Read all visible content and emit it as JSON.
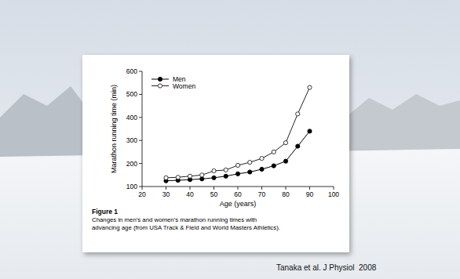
{
  "chart_data": {
    "type": "line",
    "x_label": "Age (years)",
    "y_label": "Marathon running time (min)",
    "x": [
      30,
      35,
      40,
      45,
      50,
      55,
      60,
      65,
      70,
      75,
      80,
      85,
      90
    ],
    "series": [
      {
        "name": "Men",
        "color": "#000000",
        "marker": "filled-circle",
        "line_style": "solid",
        "values": [
          125,
          127,
          130,
          133,
          138,
          145,
          155,
          163,
          175,
          190,
          210,
          275,
          340
        ]
      },
      {
        "name": "Women",
        "color": "#222222",
        "marker": "open-circle",
        "line_style": "solid",
        "values": [
          138,
          140,
          145,
          150,
          168,
          172,
          192,
          205,
          222,
          250,
          290,
          415,
          530
        ]
      }
    ],
    "xlim": [
      20,
      100
    ],
    "xticks": [
      20,
      30,
      40,
      50,
      60,
      70,
      80,
      90,
      100
    ],
    "ylim": [
      100,
      600
    ],
    "yticks": [
      100,
      200,
      300,
      400,
      500,
      600
    ],
    "grid": false,
    "legend": "upper-left"
  },
  "figure": {
    "label": "Figure 1",
    "caption_lines": [
      "Changes in men's and women's marathon running times with",
      "advancing age (from USA Track & Field and World Masters Athletics)."
    ]
  },
  "citation": "Tanaka et al. J Physiol  2008"
}
